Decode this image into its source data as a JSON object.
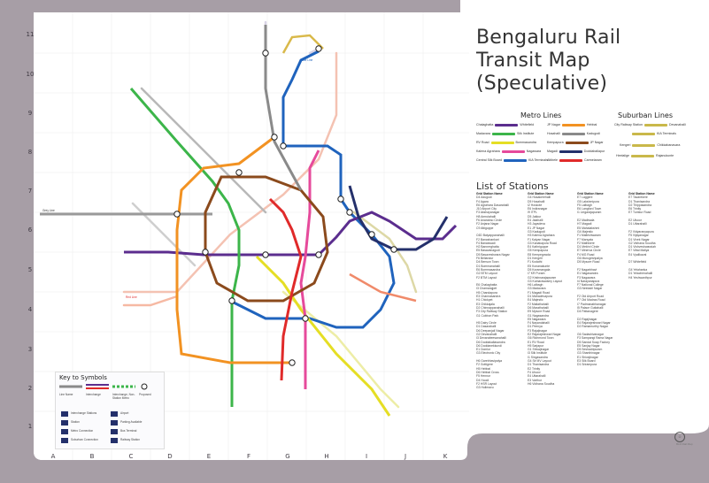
{
  "title": [
    "Bengaluru Rail",
    "Transit Map",
    "(Speculative)"
  ],
  "columns": [
    "A",
    "B",
    "C",
    "D",
    "E",
    "F",
    "G",
    "H",
    "I",
    "J",
    "K"
  ],
  "rows": [
    "11",
    "10",
    "9",
    "8",
    "7",
    "6",
    "5",
    "4",
    "3",
    "2",
    "1"
  ],
  "metro_heading": "Metro Lines",
  "suburban_heading": "Suburban Lines",
  "metro_lines": [
    {
      "from": "Chalaghatta",
      "name": "Purple Line",
      "to": "Whitefield",
      "color": "#5b2d8e"
    },
    {
      "from": "JP Nagar",
      "name": "Orange Line",
      "to": "Hebbal",
      "color": "#f29222"
    },
    {
      "from": "Madavara",
      "name": "Green Line",
      "to": "Silk Institute",
      "color": "#3cb54a"
    },
    {
      "from": "Hosahalli",
      "name": "Grey Line",
      "to": "Kadugodi",
      "color": "#8a8a8a"
    },
    {
      "from": "RV Road",
      "name": "Yellow Line",
      "to": "Bommasandra",
      "color": "#e5de24"
    },
    {
      "from": "Kempapura",
      "name": "Brown Line",
      "to": "JP Nagar",
      "color": "#8b4a1c"
    },
    {
      "from": "Kalena Agrahara",
      "name": "Pink Line",
      "to": "Nagawara",
      "color": "#e64a9b"
    },
    {
      "from": "Magadi",
      "name": "Navy Line",
      "to": "Doddaballapur",
      "color": "#24306b"
    },
    {
      "from": "Central Silk Board",
      "name": "Blue Line",
      "to": "KIA Terminals",
      "color": "#1f63bd"
    },
    {
      "from": "Attibele",
      "name": "Red Line",
      "to": "Carmelaram",
      "color": "#e02a2a"
    }
  ],
  "suburban_lines": [
    {
      "from": "City Railway Station",
      "name": "Sampige",
      "to": "Devanahalli",
      "color": "#c9b84a"
    },
    {
      "from": "",
      "name": "Mallige",
      "to": "KIA Terminals",
      "color": "#c9b84a"
    },
    {
      "from": "Kengeri",
      "name": "Parijaata",
      "to": "Chikkabanavara",
      "color": "#c9b84a"
    },
    {
      "from": "Heelalige",
      "name": "Kanaka",
      "to": "Rajanukunte",
      "color": "#c9b84a"
    }
  ],
  "stations_title": "List of Stations",
  "station_columns": [
    {
      "header": "Grid   Station Name",
      "items": [
        "D4 Adugodi",
        "F4 Agara",
        "E6 Agrahara Dasarahalli",
        "J10 Airport City",
        "F3 Akshayanagar",
        "H8 Amrutahalli",
        "F6 Anandrao Circle",
        "F2 Anjana Nagar",
        "C9 Attiguppe",
        "",
        "C6D Baiyappanahalli",
        "F2 Banashankari",
        "F4 Banaswadi",
        "H2 Bannerghatta",
        "E5 Basavanagudi",
        "D5 Basaveshwara Nagar",
        "F6 Bellandur",
        "D4 Benson Town",
        "D1 Bommanahalli",
        "E6 Bommasandra",
        "G2 BTM Layout",
        "F2 BTM Layout",
        "",
        "E6 Chalaghatta",
        "I3 Chamarajpet",
        "H5 Chandapura",
        "E3 Channasandra",
        "H1 Chickpet",
        "E3 Chikkajala",
        "D2 Chinnappanahalli",
        "F3 City Railway Station",
        "G1 Cubbon Park",
        "",
        "H5 Dairy Circle",
        "D1 Dasarahalli",
        "D6 Deepanjali Nagar",
        "G2 Devanahalli",
        "I3 Devarabeesanahalli",
        "D6 Doddakallasandra",
        "D6 Doddanekkundi",
        "E1 Domlur",
        "G3 Electronic City",
        "",
        "H6 Garebhavipalya",
        "F2 Gottigere",
        "H5 Hebbal",
        "D6 Hebbal Cross",
        "F5 Hennur",
        "D4 Hoodi",
        "F2 HSR Layout",
        "G3 Hulimavu"
      ]
    },
    {
      "header": "Grid   Station Name",
      "items": [
        "G4 Hosakerehalli",
        "D5 Hosahalli",
        "I2 Hoskote",
        "E6 Indiranagar",
        "I9 ITPL",
        "D5 Jakkur",
        "E4 Jalahalli",
        "H3 Jayadeva",
        "E1 JP Nagar",
        "G3 Kadugodi",
        "H3 Kalena Agrahara",
        "F1 Kalyan Nagar",
        "G3 Kanakapura Road",
        "E4 Kathriguppe",
        "G5 Kempapura",
        "E8 Kempegowda",
        "D1 Kengeri",
        "F1 Kodathi",
        "E5 Konanakunte",
        "D5 Koramangala",
        "I7 KR Puram",
        "G2 Krishnarajapuram",
        "G3 Kumaraswamy Layout",
        "H6 Lalbagh",
        "G3 Madavara",
        "F1 Magadi Road",
        "D1 Mahadevapura",
        "E4 Majestic",
        "F2 Mallathahalli",
        "D6 Marathahalli",
        "E9 Mysore Road",
        "G1 Nagasandra",
        "E5 Nagawara",
        "F4 Nayandahalli",
        "D1 Peenya",
        "F3 Rajajinagar",
        "E2 Rajarajeshwari Nagar",
        "G6 Richmond Town",
        "E1 RV Road",
        "H5 Sarjapur",
        "G1 Shivajinagar",
        "I3 Silk Institute",
        "I1 Singasandra",
        "G4 Sir MV Layout",
        "D1 Thanisandra",
        "E2 Trinity",
        "F4 Ulsoor",
        "E4 Uttarahalli",
        "E3 Varthur",
        "H6 Vidhana Soudha"
      ]
    },
    {
      "header": "Grid   Station Name",
      "items": [
        "E7 Laggere",
        "G5 Lakshmipura",
        "F5 Lalbagh",
        "E6 Langford Town",
        "I1 Lingarajapuram",
        "",
        "E2 Madiwala",
        "H7 Magadi",
        "E5 Mahalakshmi",
        "G4 Majestic",
        "F1 Malleshwaram",
        "F7 Manyata",
        "F2 Mathikere",
        "D1 Mekhri Circle",
        "E7 Minerva Circle",
        "F4 MG Road",
        "G6 Murugeshpalya",
        "D5 Mysore Road",
        "",
        "F2 Nagarbhavi",
        "E1 Nagasandra",
        "F3 Nagawara",
        "I4 Narayanapura",
        "F7 National College",
        "G3 Neeladri Nagar",
        "",
        "F2 Old Airport Road",
        "F7 Old Madras Road",
        "I7 Padmanabhanagar",
        "I5 Palace Guttahalli",
        "D4 Pattanagere",
        "",
        "D2 Rajajinagar",
        "E4 Rajarajeshwari Nagar",
        "D2 Ramamurthy Nagar",
        "",
        "G6 Sadashivanagar",
        "F3 Sampangi Rama Nagar",
        "D5 Sandal Soap Factory",
        "E5 Sanjay Nagar",
        "D5 Seshadripuram",
        "G3 Shanthinagar",
        "E1 Shivajinagar",
        "E3 Silk Board",
        "D1 Srirampura"
      ]
    },
    {
      "header": "Grid   Station Name",
      "items": [
        "E7 Tavarekere",
        "D1 Thanisandra",
        "D2 Thippasandra",
        "E6 Trinity",
        "E7 Tumkur Road",
        "",
        "E2 Ulsoor",
        "D1 Uttarahalli",
        "",
        "F2 Vidyaranyapura",
        "F5 Vijayanagar",
        "D1 Vivek Nagar",
        "G2 Vidhana Soudha",
        "D1 Vishveshwaraiah",
        "E7 Vittal Mallya",
        "E4 Vyalikaval",
        "",
        "D7 Whitefield",
        "",
        "G4 Yelahanka",
        "D1 Yelachenahalli",
        "H4 Yeshwanthpur"
      ]
    }
  ],
  "key_title": "Key to Symbols",
  "key_items": [
    "Line Name",
    "Interchange",
    "Interchange, Non-Station Metro",
    "Proposed",
    "Interchange Stations",
    "Station",
    "Metro Connection",
    "Suburban Connection",
    "Airport",
    "Parking Available",
    "Bus Terminal",
    "Railway Station"
  ],
  "map_labels": [
    "Blue Line",
    "Grey Line",
    "Red Line",
    "Purple Line",
    "Yellow Line",
    "Pink Line",
    "Orange Line",
    "Green Line",
    "Brown Line",
    "Navy Line"
  ],
  "credit": "BLR Rail Map"
}
